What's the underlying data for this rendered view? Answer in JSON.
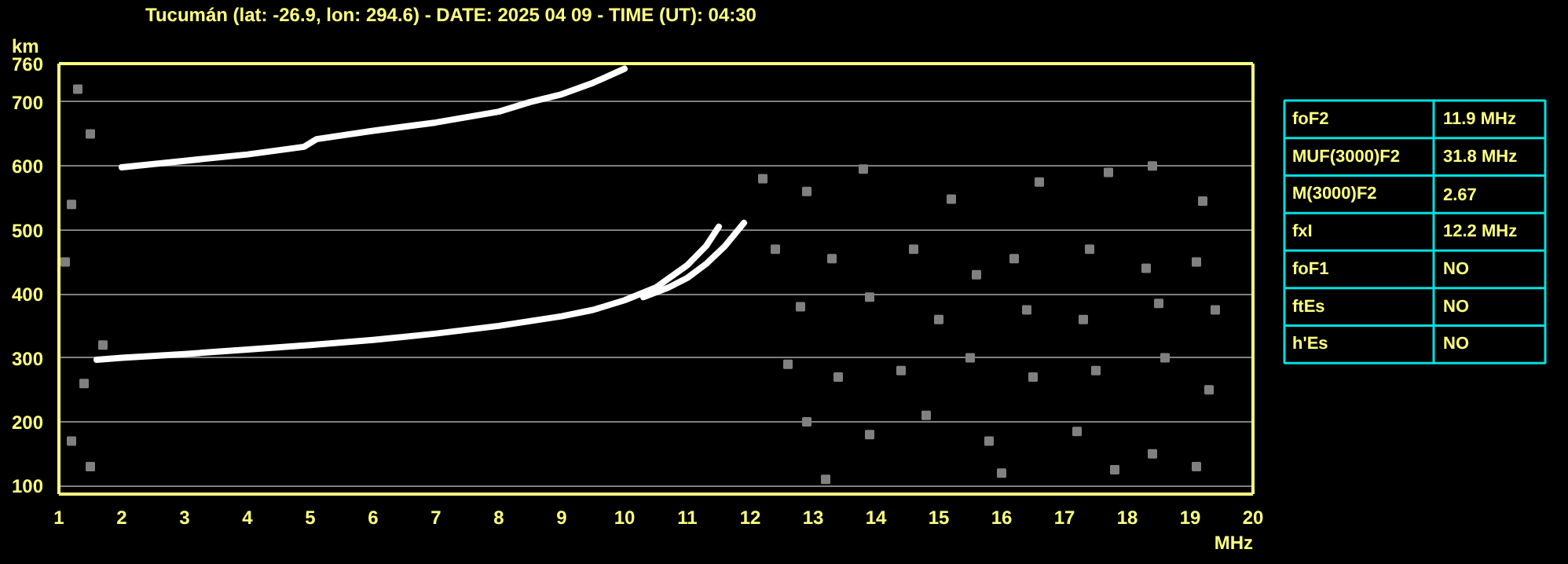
{
  "chart_data": [
    {
      "type": "line",
      "title": "Tucumán (lat: -26.9, lon: 294.6) - DATE: 2025 04 09 - TIME (UT): 04:30",
      "xlabel": "MHz",
      "ylabel": "km",
      "xlim": [
        1,
        20
      ],
      "ylim": [
        87,
        760
      ],
      "xticks": [
        1,
        2,
        3,
        4,
        5,
        6,
        7,
        8,
        9,
        10,
        11,
        12,
        13,
        14,
        15,
        16,
        17,
        18,
        19,
        20
      ],
      "yticks": [
        100,
        200,
        300,
        400,
        500,
        600,
        700,
        760
      ],
      "grid": true,
      "marker": "none",
      "line_style": "solid",
      "series": [
        {
          "color": "#ffffff",
          "x": [
            1.6,
            2,
            3,
            4,
            5,
            6,
            7,
            8,
            9,
            9.5,
            10,
            10.5,
            11,
            11.3,
            11.5
          ],
          "values": [
            297,
            300,
            306,
            313,
            320,
            328,
            338,
            350,
            365,
            375,
            390,
            410,
            445,
            475,
            505
          ]
        },
        {
          "color": "#ffffff",
          "x": [
            10.3,
            10.7,
            11,
            11.3,
            11.6,
            11.9
          ],
          "values": [
            395,
            410,
            425,
            447,
            475,
            511
          ]
        },
        {
          "color": "#ffffff",
          "x": [
            2,
            3,
            4,
            4.9,
            5.1,
            6,
            7,
            8,
            8.5,
            9,
            9.5,
            10
          ],
          "values": [
            598,
            608,
            618,
            630,
            642,
            655,
            668,
            685,
            700,
            712,
            730,
            752
          ]
        },
        {
          "type": "scatter",
          "marker": "square",
          "color": "#808080",
          "x": [
            12.2,
            12.9,
            13.8,
            15.2,
            16.6,
            17.7,
            18.4,
            19.2,
            12.4,
            13.3,
            14.6,
            15.6,
            16.2,
            17.4,
            18.3,
            19.1,
            12.8,
            13.9,
            15.0,
            16.4,
            17.3,
            18.5,
            19.4,
            12.6,
            13.4,
            14.4,
            15.5,
            16.5,
            17.5,
            18.6,
            19.3,
            12.9,
            13.9,
            14.8,
            15.8,
            17.2,
            18.4,
            19.1,
            13.2,
            16.0,
            17.8,
            1.3,
            1.5,
            1.2,
            1.1,
            1.4,
            1.2,
            1.5,
            1.7
          ],
          "values": [
            580,
            560,
            595,
            548,
            575,
            590,
            600,
            545,
            470,
            455,
            470,
            430,
            455,
            470,
            440,
            450,
            380,
            395,
            360,
            375,
            360,
            385,
            375,
            290,
            270,
            280,
            300,
            270,
            280,
            300,
            250,
            200,
            180,
            210,
            170,
            185,
            150,
            130,
            110,
            120,
            125,
            720,
            650,
            540,
            450,
            260,
            170,
            130,
            320
          ]
        }
      ]
    },
    {
      "type": "other",
      "categories": [
        "foF2",
        "MUF(3000)F2",
        "M(3000)F2",
        "fxI",
        "foF1",
        "ftEs",
        "h'Es"
      ],
      "value_labels": [
        "11.9 MHz",
        "31.8 MHz",
        "2.67",
        "12.2 MHz",
        "NO",
        "NO",
        "NO"
      ]
    }
  ]
}
